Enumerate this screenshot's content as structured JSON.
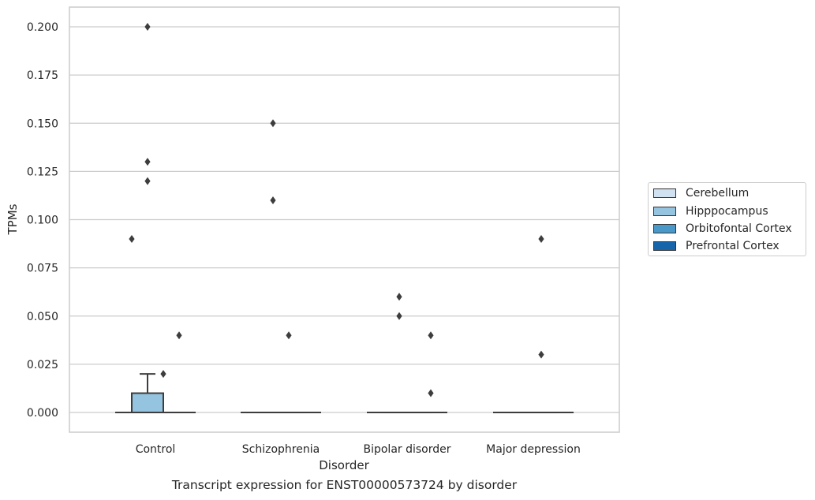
{
  "chart_data": {
    "type": "box",
    "caption": "Transcript expression for ENST00000573724 by disorder",
    "xlabel": "Disorder",
    "ylabel": "TPMs",
    "ylim": [
      -0.01,
      0.21
    ],
    "yticks": [
      "0.000",
      "0.025",
      "0.050",
      "0.075",
      "0.100",
      "0.125",
      "0.150",
      "0.175",
      "0.200"
    ],
    "grid": true,
    "legend_position": "right",
    "categories": [
      "Control",
      "Schizophrenia",
      "Bipolar disorder",
      "Major depression"
    ],
    "series": [
      {
        "name": "Cerebellum",
        "color": "#d0e1f2"
      },
      {
        "name": "Hipppocampus",
        "color": "#94c4df"
      },
      {
        "name": "Orbitofontal Cortex",
        "color": "#4a98c9"
      },
      {
        "name": "Prefrontal Cortex",
        "color": "#1764ab"
      }
    ],
    "boxes": [
      {
        "category": "Control",
        "series": "Cerebellum",
        "q1": 0,
        "median": 0,
        "q3": 0,
        "whisker_low": 0,
        "whisker_high": 0,
        "outliers": [
          0.09
        ]
      },
      {
        "category": "Control",
        "series": "Hipppocampus",
        "q1": 0,
        "median": 0,
        "q3": 0.01,
        "whisker_low": 0,
        "whisker_high": 0.02,
        "outliers": [
          0.2,
          0.13,
          0.12
        ]
      },
      {
        "category": "Control",
        "series": "Orbitofontal Cortex",
        "q1": 0,
        "median": 0,
        "q3": 0,
        "whisker_low": 0,
        "whisker_high": 0,
        "outliers": [
          0.02
        ]
      },
      {
        "category": "Control",
        "series": "Prefrontal Cortex",
        "q1": 0,
        "median": 0,
        "q3": 0,
        "whisker_low": 0,
        "whisker_high": 0,
        "outliers": [
          0.04
        ]
      },
      {
        "category": "Schizophrenia",
        "series": "Cerebellum",
        "q1": 0,
        "median": 0,
        "q3": 0,
        "whisker_low": 0,
        "whisker_high": 0,
        "outliers": []
      },
      {
        "category": "Schizophrenia",
        "series": "Hipppocampus",
        "q1": 0,
        "median": 0,
        "q3": 0,
        "whisker_low": 0,
        "whisker_high": 0,
        "outliers": [
          0.15,
          0.11
        ]
      },
      {
        "category": "Schizophrenia",
        "series": "Orbitofontal Cortex",
        "q1": 0,
        "median": 0,
        "q3": 0,
        "whisker_low": 0,
        "whisker_high": 0,
        "outliers": [
          0.04
        ]
      },
      {
        "category": "Schizophrenia",
        "series": "Prefrontal Cortex",
        "q1": 0,
        "median": 0,
        "q3": 0,
        "whisker_low": 0,
        "whisker_high": 0,
        "outliers": []
      },
      {
        "category": "Bipolar disorder",
        "series": "Cerebellum",
        "q1": 0,
        "median": 0,
        "q3": 0,
        "whisker_low": 0,
        "whisker_high": 0,
        "outliers": []
      },
      {
        "category": "Bipolar disorder",
        "series": "Hipppocampus",
        "q1": 0,
        "median": 0,
        "q3": 0,
        "whisker_low": 0,
        "whisker_high": 0,
        "outliers": [
          0.06,
          0.05
        ]
      },
      {
        "category": "Bipolar disorder",
        "series": "Orbitofontal Cortex",
        "q1": 0,
        "median": 0,
        "q3": 0,
        "whisker_low": 0,
        "whisker_high": 0,
        "outliers": []
      },
      {
        "category": "Bipolar disorder",
        "series": "Prefrontal Cortex",
        "q1": 0,
        "median": 0,
        "q3": 0,
        "whisker_low": 0,
        "whisker_high": 0,
        "outliers": [
          0.04,
          0.01
        ]
      },
      {
        "category": "Major depression",
        "series": "Cerebellum",
        "q1": 0,
        "median": 0,
        "q3": 0,
        "whisker_low": 0,
        "whisker_high": 0,
        "outliers": []
      },
      {
        "category": "Major depression",
        "series": "Hipppocampus",
        "q1": 0,
        "median": 0,
        "q3": 0,
        "whisker_low": 0,
        "whisker_high": 0,
        "outliers": []
      },
      {
        "category": "Major depression",
        "series": "Orbitofontal Cortex",
        "q1": 0,
        "median": 0,
        "q3": 0,
        "whisker_low": 0,
        "whisker_high": 0,
        "outliers": [
          0.09,
          0.03
        ]
      },
      {
        "category": "Major depression",
        "series": "Prefrontal Cortex",
        "q1": 0,
        "median": 0,
        "q3": 0,
        "whisker_low": 0,
        "whisker_high": 0,
        "outliers": []
      }
    ]
  }
}
